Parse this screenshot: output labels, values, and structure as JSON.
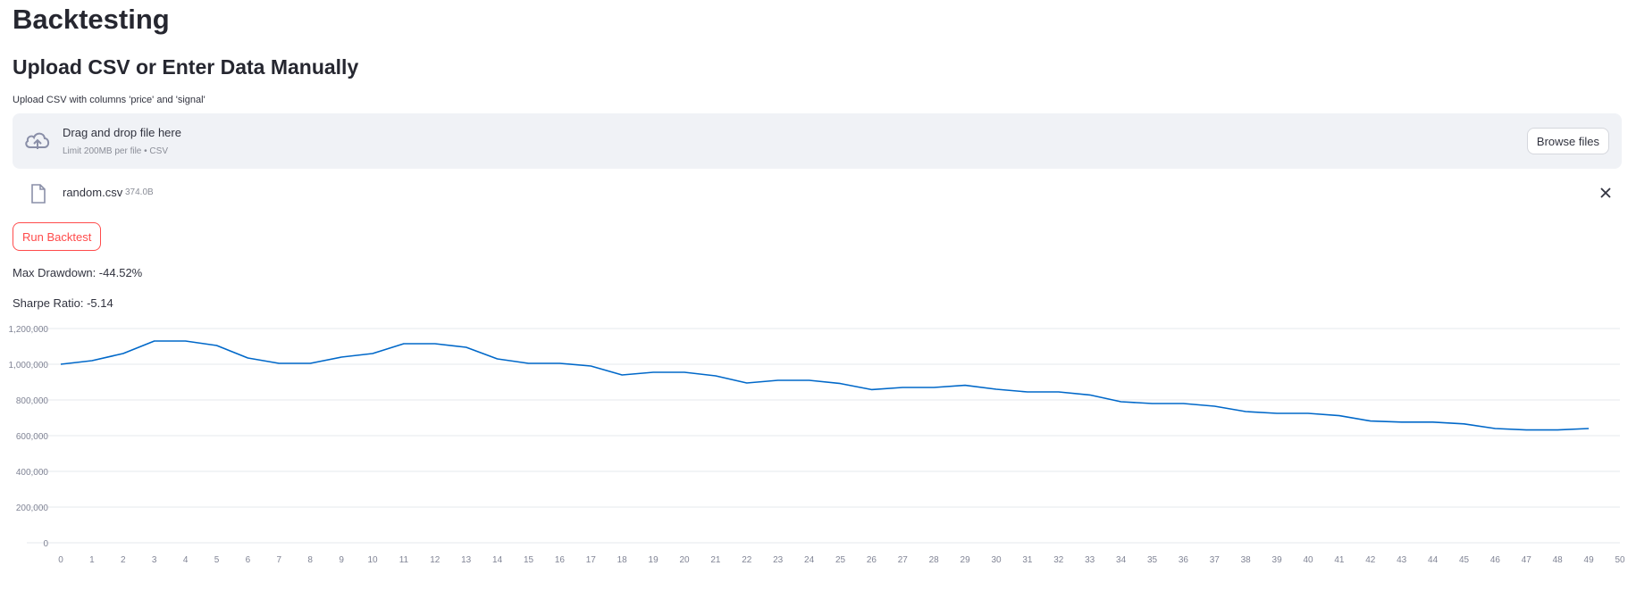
{
  "page": {
    "title": "Backtesting",
    "section_title": "Upload CSV or Enter Data Manually"
  },
  "uploader": {
    "label": "Upload CSV with columns 'price' and 'signal'",
    "drop_text": "Drag and drop file here",
    "limit_text": "Limit 200MB per file • CSV",
    "browse_label": "Browse files",
    "icon": "cloud-upload-icon"
  },
  "file": {
    "name": "random.csv",
    "size": "374.0B",
    "icon": "file-icon"
  },
  "actions": {
    "run_label": "Run Backtest"
  },
  "metrics": {
    "max_drawdown": "Max Drawdown: -44.52%",
    "sharpe_ratio": "Sharpe Ratio: -5.14"
  },
  "colors": {
    "line": "#0068c9",
    "accent": "#ff4b4b",
    "dropzone_bg": "#f0f2f6"
  },
  "chart_data": {
    "type": "line",
    "title": "",
    "xlabel": "",
    "ylabel": "",
    "xlim": [
      0,
      50
    ],
    "ylim": [
      0,
      1200000
    ],
    "grid": true,
    "x_ticks": [
      0,
      1,
      2,
      3,
      4,
      5,
      6,
      7,
      8,
      9,
      10,
      11,
      12,
      13,
      14,
      15,
      16,
      17,
      18,
      19,
      20,
      21,
      22,
      23,
      24,
      25,
      26,
      27,
      28,
      29,
      30,
      31,
      32,
      33,
      34,
      35,
      36,
      37,
      38,
      39,
      40,
      41,
      42,
      43,
      44,
      45,
      46,
      47,
      48,
      49,
      50
    ],
    "y_ticks": [
      0,
      200000,
      400000,
      600000,
      800000,
      1000000,
      1200000
    ],
    "y_tick_labels": [
      "0",
      "200,000",
      "400,000",
      "600,000",
      "800,000",
      "1,000,000",
      "1,200,000"
    ],
    "series": [
      {
        "x": [
          0,
          1,
          2,
          3,
          4,
          5,
          6,
          7,
          8,
          9,
          10,
          11,
          12,
          13,
          14,
          15,
          16,
          17,
          18,
          19,
          20,
          21,
          22,
          23,
          24,
          25,
          26,
          27,
          28,
          29,
          30,
          31,
          32,
          33,
          34,
          35,
          36,
          37,
          38,
          39,
          40,
          41,
          42,
          43,
          44,
          45,
          46,
          47,
          48,
          49
        ],
        "values": [
          1000000,
          1020000,
          1060000,
          1130000,
          1130000,
          1105000,
          1035000,
          1005000,
          1005000,
          1040000,
          1060000,
          1115000,
          1115000,
          1095000,
          1030000,
          1005000,
          1005000,
          990000,
          940000,
          955000,
          955000,
          935000,
          895000,
          910000,
          910000,
          892000,
          858000,
          870000,
          870000,
          882000,
          860000,
          845000,
          845000,
          828000,
          790000,
          780000,
          780000,
          765000,
          735000,
          725000,
          725000,
          712000,
          682000,
          676000,
          676000,
          666000,
          640000,
          632000,
          632000,
          640000
        ]
      }
    ]
  }
}
